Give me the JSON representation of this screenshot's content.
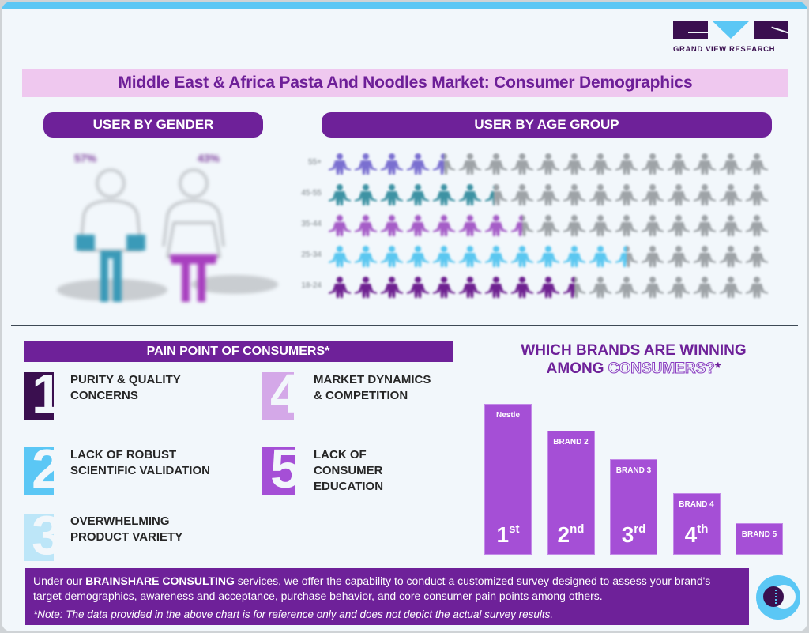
{
  "logo": {
    "text": "GRAND VIEW RESEARCH"
  },
  "title": "Middle East & Africa Pasta And Noodles Market: Consumer Demographics",
  "gender": {
    "header": "USER BY GENDER",
    "male": {
      "label": "57%",
      "color": "#3a9ab8"
    },
    "female": {
      "label": "43%",
      "color": "#a83fbf"
    }
  },
  "age": {
    "header": "USER BY AGE GROUP",
    "rows": [
      {
        "label": "55+",
        "filled": 4.5,
        "color": "#7a6fd0"
      },
      {
        "label": "45-55",
        "filled": 6.4,
        "color": "#3d92a3"
      },
      {
        "label": "35-44",
        "filled": 7.5,
        "color": "#a55dc7"
      },
      {
        "label": "25-34",
        "filled": 11.5,
        "color": "#5bc7f0"
      },
      {
        "label": "18-24",
        "filled": 9.5,
        "color": "#6e2190"
      }
    ],
    "total_icons": 17,
    "empty_color": "#9ea3a7"
  },
  "pain": {
    "header": "PAIN POINT OF CONSUMERS*",
    "items": [
      {
        "num": "1",
        "line1": "PURITY & QUALITY",
        "line2": "CONCERNS",
        "line3": "",
        "color": "#3a0f4f"
      },
      {
        "num": "2",
        "line1": "LACK OF ROBUST",
        "line2": "SCIENTIFIC VALIDATION",
        "line3": "",
        "color": "#5bc7f5"
      },
      {
        "num": "3",
        "line1": "OVERWHELMING",
        "line2": "PRODUCT VARIETY",
        "line3": "",
        "color": "#bde6f8"
      },
      {
        "num": "4",
        "line1": "MARKET DYNAMICS",
        "line2": "& COMPETITION",
        "line3": "",
        "color": "#d4a8e8"
      },
      {
        "num": "5",
        "line1": "LACK OF",
        "line2": "CONSUMER",
        "line3": "EDUCATION",
        "color": "#a54fd6"
      }
    ]
  },
  "brands": {
    "title_line1": "WHICH BRANDS ARE WINNING",
    "title_line2_a": "AMONG ",
    "title_line2_b": "CONSUMERS?",
    "title_line2_c": "*"
  },
  "chart_data": {
    "type": "bar",
    "title": "Which Brands Are Winning Among Consumers?*",
    "categories": [
      "Nestle",
      "BRAND 2",
      "BRAND 3",
      "BRAND 4",
      "BRAND 5"
    ],
    "ranks": [
      {
        "num": "1",
        "suffix": "st"
      },
      {
        "num": "2",
        "suffix": "nd"
      },
      {
        "num": "3",
        "suffix": "rd"
      },
      {
        "num": "4",
        "suffix": "th"
      },
      {
        "num": "",
        "suffix": ""
      }
    ],
    "values": [
      191,
      157,
      121,
      78,
      40
    ],
    "bar_color": "#a54fd6",
    "gender": {
      "categories": [
        "Male",
        "Female"
      ],
      "values": [
        57,
        43
      ]
    },
    "age_groups": {
      "categories": [
        "55+",
        "45-55",
        "35-44",
        "25-34",
        "18-24"
      ],
      "relative_fill_of_17_icons": [
        4.5,
        6.4,
        7.5,
        11.5,
        9.5
      ]
    }
  },
  "footer": {
    "text_a": "Under our ",
    "text_bold": "BRAINSHARE CONSULTING",
    "text_b": " services, we offer the capability to conduct a customized survey designed to assess your brand's target demographics, awareness and acceptance, purchase behavior, and core consumer pain points among others.",
    "note": "*Note: The data provided in the above chart is for reference only and does not depict the actual survey results."
  }
}
